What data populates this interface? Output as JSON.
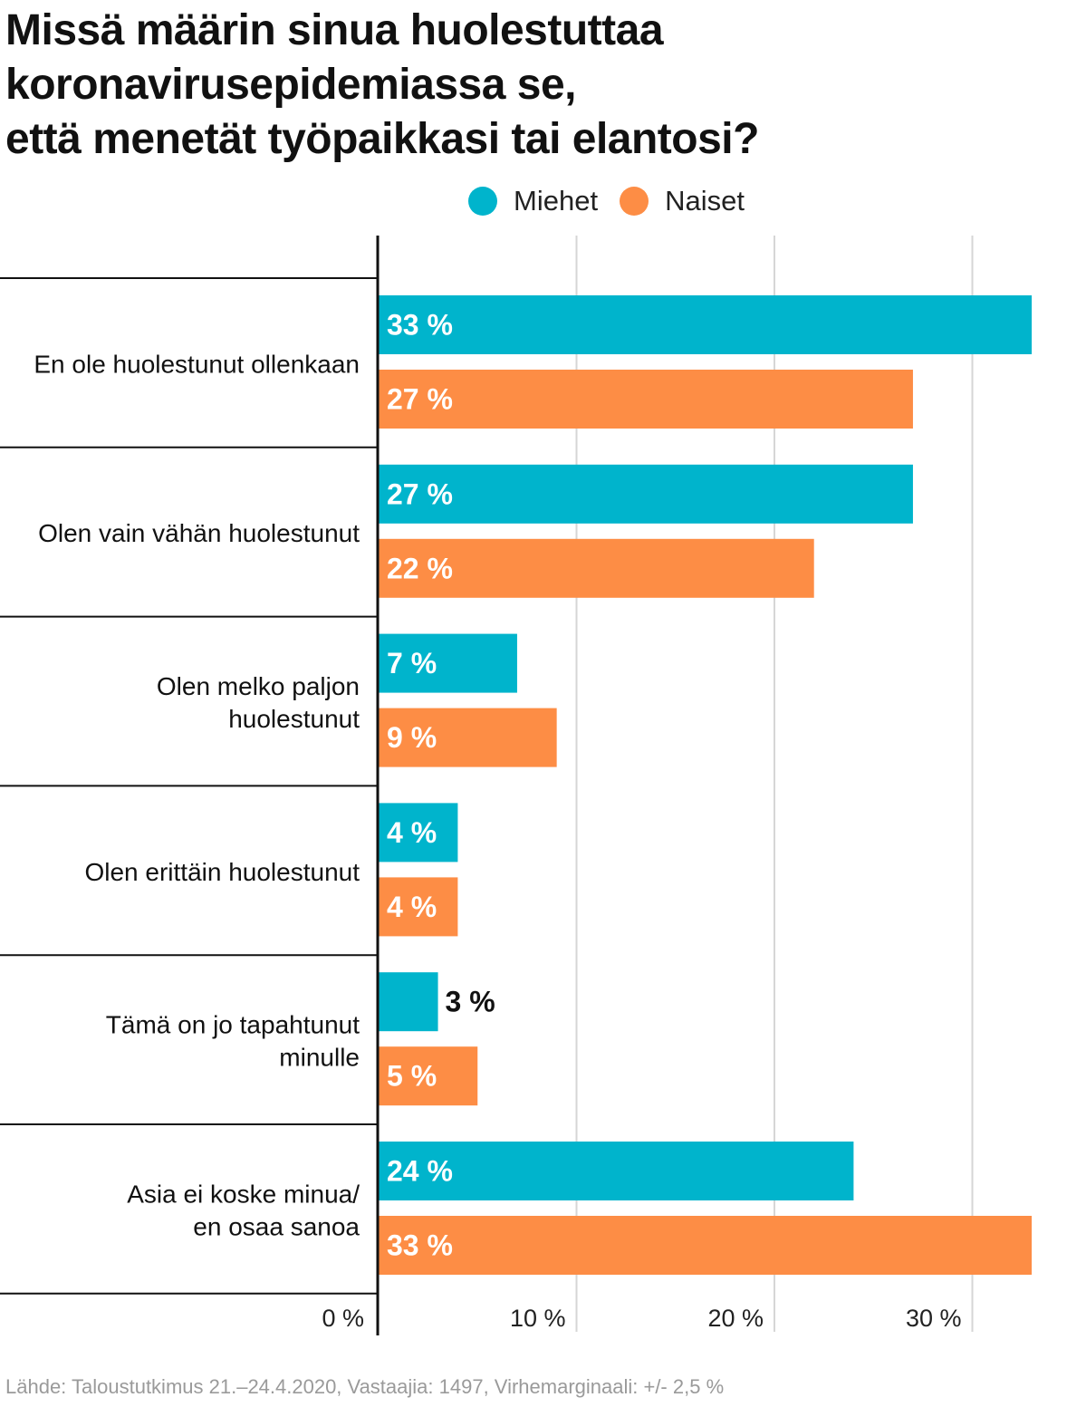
{
  "title_lines": [
    "Missä määrin sinua huolestuttaa",
    "koronavirusepidemiassa se,",
    "että menetät työpaikkasi tai elantosi?"
  ],
  "footer": "Lähde: Taloustutkimus 21.–24.4.2020, Vastaajia: 1497, Virhemarginaali: +/- 2,5 %",
  "colors": {
    "miehet": "#00b4cc",
    "naiset": "#fd8d45",
    "grid": "#d6d6d6",
    "axis": "#111111"
  },
  "chart_data": {
    "type": "bar",
    "orientation": "horizontal",
    "title": "Missä määrin sinua huolestuttaa koronavirusepidemiassa se, että menetät työpaikkasi tai elantosi?",
    "categories": [
      [
        "En ole huolestunut ollenkaan"
      ],
      [
        "Olen vain vähän huolestunut"
      ],
      [
        "Olen melko paljon",
        "huolestunut"
      ],
      [
        "Olen erittäin huolestunut"
      ],
      [
        "Tämä on jo tapahtunut",
        "minulle"
      ],
      [
        "Asia ei koske minua/",
        "en osaa sanoa"
      ]
    ],
    "series": [
      {
        "name": "Miehet",
        "values": [
          33,
          27,
          7,
          4,
          3,
          24
        ],
        "labels": [
          "33 %",
          "27 %",
          "7 %",
          "4 %",
          "3 %",
          "24 %"
        ]
      },
      {
        "name": "Naiset",
        "values": [
          27,
          22,
          9,
          4,
          5,
          33
        ],
        "labels": [
          "27 %",
          "22 %",
          "9 %",
          "4 %",
          "5 %",
          "33 %"
        ]
      }
    ],
    "xlim": [
      0,
      33
    ],
    "xticks": [
      0,
      10,
      20,
      30
    ],
    "xtick_labels": [
      "0 %",
      "10 %",
      "20 %",
      "30 %"
    ],
    "grid": true,
    "legend_position": "top"
  }
}
